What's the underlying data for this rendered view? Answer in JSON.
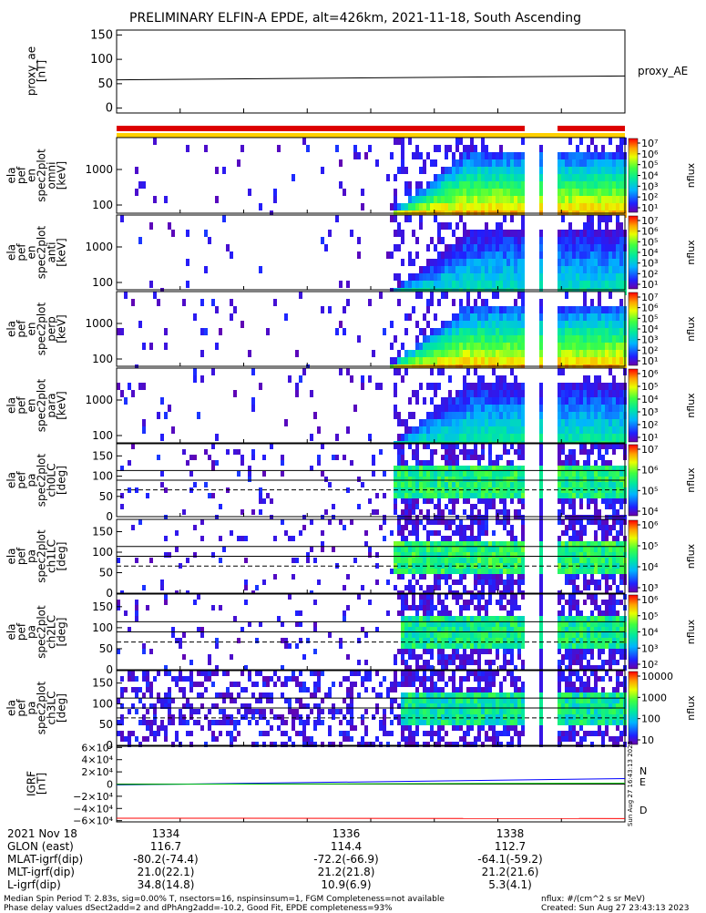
{
  "title": "PRELIMINARY ELFIN-A EPDE, alt=426km, 2021-11-18, South Ascending",
  "chart_data": [
    {
      "type": "line",
      "panel": "proxy_ae",
      "ylabel_lines": [
        "proxy_ae",
        "[nT]"
      ],
      "yticks": [
        "150",
        "100",
        "50",
        "0"
      ],
      "ytick_values": [
        150,
        100,
        50,
        0
      ],
      "ylim": [
        -10,
        160
      ],
      "series": [
        {
          "name": "proxy_AE",
          "x": [
            0,
            1
          ],
          "y": [
            58,
            66
          ]
        }
      ]
    },
    {
      "type": "heatmap",
      "panel": "spec-en-1",
      "ylabel_lines": [
        "ela",
        "pef",
        "en",
        "spec2plot",
        "omni",
        "[keV]"
      ],
      "yticks": [
        "1000",
        "100"
      ],
      "ylog": true,
      "colorbar_label": "nflux",
      "colorbar_ticks": [
        "10⁷",
        "10⁶",
        "10⁵",
        "10⁴",
        "10³",
        "10²",
        "10¹"
      ]
    },
    {
      "type": "heatmap",
      "panel": "spec-en-2",
      "ylabel_lines": [
        "ela",
        "pef",
        "en",
        "spec2plot",
        "anti",
        "[keV]"
      ],
      "yticks": [
        "1000",
        "100"
      ],
      "ylog": true,
      "colorbar_label": "nflux",
      "colorbar_ticks": [
        "10⁷",
        "10⁶",
        "10⁵",
        "10⁴",
        "10³",
        "10²",
        "10¹"
      ]
    },
    {
      "type": "heatmap",
      "panel": "spec-en-3",
      "ylabel_lines": [
        "ela",
        "pef",
        "en",
        "spec2plot",
        "perp",
        "[keV]"
      ],
      "yticks": [
        "1000",
        "100"
      ],
      "ylog": true,
      "colorbar_label": "nflux",
      "colorbar_ticks": [
        "10⁷",
        "10⁶",
        "10⁵",
        "10⁴",
        "10³",
        "10²",
        "10¹"
      ]
    },
    {
      "type": "heatmap",
      "panel": "spec-en-4",
      "ylabel_lines": [
        "ela",
        "pef",
        "en",
        "spec2plot",
        "para",
        "[keV]"
      ],
      "yticks": [
        "1000",
        "100"
      ],
      "ylog": true,
      "colorbar_label": "nflux",
      "colorbar_ticks": [
        "10⁶",
        "10⁵",
        "10⁴",
        "10³",
        "10²",
        "10¹"
      ]
    },
    {
      "type": "heatmap",
      "panel": "spec-pa-0",
      "ylabel_lines": [
        "ela",
        "pef",
        "pa",
        "spec2plot",
        "ch0LC",
        "[deg]"
      ],
      "yticks": [
        "150",
        "100",
        "50",
        "0"
      ],
      "ylim": [
        0,
        180
      ],
      "colorbar_label": "nflux",
      "colorbar_ticks": [
        "10⁷",
        "10⁶",
        "10⁵",
        "10⁴"
      ]
    },
    {
      "type": "heatmap",
      "panel": "spec-pa-1",
      "ylabel_lines": [
        "ela",
        "pef",
        "pa",
        "spec2plot",
        "ch1LC",
        "[deg]"
      ],
      "yticks": [
        "150",
        "100",
        "50",
        "0"
      ],
      "ylim": [
        0,
        180
      ],
      "colorbar_label": "nflux",
      "colorbar_ticks": [
        "10⁶",
        "10⁵",
        "10⁴",
        "10³"
      ]
    },
    {
      "type": "heatmap",
      "panel": "spec-pa-2",
      "ylabel_lines": [
        "ela",
        "pef",
        "pa",
        "spec2plot",
        "ch2LC",
        "[deg]"
      ],
      "yticks": [
        "150",
        "100",
        "50",
        "0"
      ],
      "ylim": [
        0,
        180
      ],
      "colorbar_label": "nflux",
      "colorbar_ticks": [
        "10⁶",
        "10⁵",
        "10⁴",
        "10³",
        "10²"
      ]
    },
    {
      "type": "heatmap",
      "panel": "spec-pa-3",
      "ylabel_lines": [
        "ela",
        "pef",
        "pa",
        "spec2plot",
        "ch3LC",
        "[deg]"
      ],
      "yticks": [
        "150",
        "100",
        "50",
        "0"
      ],
      "ylim": [
        0,
        180
      ],
      "colorbar_label": "nflux",
      "colorbar_ticks": [
        "10000",
        "1000",
        "100",
        "10"
      ]
    },
    {
      "type": "line",
      "panel": "igrf",
      "ylabel_lines": [
        "IGRF",
        "[nT]"
      ],
      "yticks": [
        "6×10⁴",
        "4×10⁴",
        "2×10⁴",
        "0",
        "−2×10⁴",
        "−4×10⁴",
        "−6×10⁴"
      ],
      "ytick_values": [
        60000,
        40000,
        20000,
        0,
        -20000,
        -40000,
        -60000
      ],
      "ylim": [
        -62000,
        62000
      ],
      "series": [
        {
          "name": "N",
          "color": "#0000ff",
          "x": [
            0,
            1
          ],
          "y": [
            -1500,
            9000
          ]
        },
        {
          "name": "E",
          "color": "#00cc00",
          "x": [
            0,
            1
          ],
          "y": [
            -500,
            1500
          ]
        },
        {
          "name": "D",
          "color": "#ff0000",
          "x": [
            0,
            1
          ],
          "y": [
            -56000,
            -56500
          ]
        }
      ]
    }
  ],
  "footer": {
    "rows": [
      {
        "label": "2021 Nov 18",
        "values": [
          "1334",
          "1336",
          "1338"
        ]
      },
      {
        "label": "GLON (east)",
        "values": [
          "116.7",
          "114.4",
          "112.7"
        ]
      },
      {
        "label": "MLAT-igrf(dip)",
        "values": [
          "-80.2(-74.4)",
          "-72.2(-66.9)",
          "-64.1(-59.2)"
        ]
      },
      {
        "label": "MLT-igrf(dip)",
        "values": [
          "21.0(22.1)",
          "21.2(21.8)",
          "21.2(21.6)"
        ]
      },
      {
        "label": "L-igrf(dip)",
        "values": [
          "34.8(14.8)",
          "10.9(6.9)",
          "5.3(4.1)"
        ]
      }
    ],
    "note1": "Median Spin Period T: 2.83s, sig=0.00% T, nsectors=16, nspinsinsum=1, FGM Completeness=not available",
    "note2": "Phase delay values dSect2add=2 and dPhAng2add=-10.2, Good Fit, EPDE completeness=93%",
    "units": "nflux: #/(cm^2 s sr MeV)",
    "created": "Created: Sun Aug 27 23:43:13 2023",
    "vertical_stamp": "Sun Aug 27 16:43:13 2023"
  }
}
